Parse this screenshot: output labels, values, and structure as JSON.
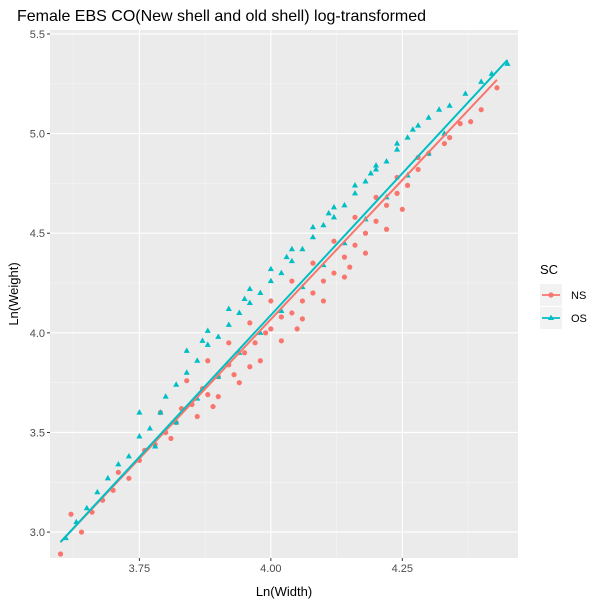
{
  "chart_data": {
    "type": "scatter",
    "title": "Female EBS CO(New shell and old shell) log-transformed",
    "xlabel": "Ln(Width)",
    "ylabel": "Ln(Weight)",
    "xlim": [
      3.58,
      4.47
    ],
    "ylim": [
      2.87,
      5.52
    ],
    "x_ticks": [
      3.75,
      4.0,
      4.25
    ],
    "x_tick_labels": [
      "3.75",
      "4.00",
      "4.25"
    ],
    "y_ticks": [
      3.0,
      3.5,
      4.0,
      4.5,
      5.0,
      5.5
    ],
    "y_tick_labels": [
      "3.0",
      "3.5",
      "4.0",
      "4.5",
      "5.0",
      "5.5"
    ],
    "grid": true,
    "legend": {
      "title": "SC",
      "position": "right"
    },
    "series": [
      {
        "name": "NS",
        "color": "#F8766D",
        "marker": "circle",
        "fit_line": {
          "x": [
            3.6,
            4.43
          ],
          "y": [
            2.95,
            5.27
          ]
        },
        "points": [
          [
            3.6,
            2.89
          ],
          [
            3.62,
            3.09
          ],
          [
            3.64,
            3.0
          ],
          [
            3.66,
            3.1
          ],
          [
            3.68,
            3.16
          ],
          [
            3.7,
            3.21
          ],
          [
            3.71,
            3.3
          ],
          [
            3.73,
            3.27
          ],
          [
            3.75,
            3.36
          ],
          [
            3.76,
            3.41
          ],
          [
            3.78,
            3.44
          ],
          [
            3.8,
            3.5
          ],
          [
            3.82,
            3.55
          ],
          [
            3.83,
            3.62
          ],
          [
            3.85,
            3.64
          ],
          [
            3.87,
            3.72
          ],
          [
            3.88,
            3.69
          ],
          [
            3.9,
            3.78
          ],
          [
            3.92,
            3.84
          ],
          [
            3.93,
            3.79
          ],
          [
            3.95,
            3.9
          ],
          [
            3.97,
            3.95
          ],
          [
            3.99,
            4.0
          ],
          [
            4.0,
            4.02
          ],
          [
            4.02,
            4.08
          ],
          [
            4.04,
            4.1
          ],
          [
            4.06,
            4.16
          ],
          [
            4.08,
            4.2
          ],
          [
            4.1,
            4.26
          ],
          [
            4.12,
            4.3
          ],
          [
            4.14,
            4.38
          ],
          [
            4.16,
            4.44
          ],
          [
            4.18,
            4.5
          ],
          [
            4.2,
            4.56
          ],
          [
            4.22,
            4.64
          ],
          [
            4.24,
            4.7
          ],
          [
            4.26,
            4.74
          ],
          [
            4.28,
            4.82
          ],
          [
            4.3,
            4.9
          ],
          [
            4.33,
            4.95
          ],
          [
            4.36,
            5.05
          ],
          [
            4.38,
            5.06
          ],
          [
            4.4,
            5.12
          ],
          [
            4.43,
            5.23
          ],
          [
            3.86,
            3.58
          ],
          [
            3.9,
            3.68
          ],
          [
            3.94,
            3.75
          ],
          [
            3.98,
            3.86
          ],
          [
            4.02,
            3.96
          ],
          [
            4.06,
            4.07
          ],
          [
            4.1,
            4.16
          ],
          [
            4.14,
            4.28
          ],
          [
            4.18,
            4.4
          ],
          [
            4.22,
            4.52
          ],
          [
            3.84,
            3.76
          ],
          [
            3.88,
            3.86
          ],
          [
            3.92,
            3.95
          ],
          [
            3.96,
            4.05
          ],
          [
            4.0,
            4.16
          ],
          [
            4.04,
            4.26
          ],
          [
            4.08,
            4.35
          ],
          [
            4.12,
            4.46
          ],
          [
            4.16,
            4.58
          ],
          [
            4.2,
            4.68
          ],
          [
            4.24,
            4.78
          ],
          [
            4.28,
            4.88
          ],
          [
            3.79,
            3.6
          ],
          [
            3.81,
            3.47
          ],
          [
            3.89,
            3.63
          ],
          [
            3.96,
            3.83
          ],
          [
            4.05,
            4.02
          ],
          [
            4.15,
            4.33
          ],
          [
            4.25,
            4.62
          ],
          [
            4.34,
            4.98
          ]
        ]
      },
      {
        "name": "OS",
        "color": "#00BFC4",
        "marker": "triangle",
        "fit_line": {
          "x": [
            3.6,
            4.45
          ],
          "y": [
            2.95,
            5.37
          ]
        },
        "points": [
          [
            3.61,
            2.97
          ],
          [
            3.63,
            3.05
          ],
          [
            3.65,
            3.12
          ],
          [
            3.67,
            3.2
          ],
          [
            3.69,
            3.27
          ],
          [
            3.71,
            3.34
          ],
          [
            3.73,
            3.38
          ],
          [
            3.75,
            3.48
          ],
          [
            3.77,
            3.52
          ],
          [
            3.79,
            3.6
          ],
          [
            3.8,
            3.68
          ],
          [
            3.82,
            3.74
          ],
          [
            3.84,
            3.8
          ],
          [
            3.86,
            3.86
          ],
          [
            3.88,
            3.94
          ],
          [
            3.9,
            3.98
          ],
          [
            3.92,
            4.04
          ],
          [
            3.94,
            4.1
          ],
          [
            3.96,
            4.15
          ],
          [
            3.98,
            4.2
          ],
          [
            4.0,
            4.26
          ],
          [
            4.02,
            4.3
          ],
          [
            4.04,
            4.36
          ],
          [
            4.06,
            4.42
          ],
          [
            4.08,
            4.48
          ],
          [
            4.1,
            4.54
          ],
          [
            4.12,
            4.58
          ],
          [
            4.14,
            4.64
          ],
          [
            4.16,
            4.7
          ],
          [
            4.18,
            4.76
          ],
          [
            4.2,
            4.82
          ],
          [
            4.22,
            4.86
          ],
          [
            4.24,
            4.92
          ],
          [
            4.26,
            4.98
          ],
          [
            4.28,
            5.04
          ],
          [
            4.3,
            5.08
          ],
          [
            4.32,
            5.12
          ],
          [
            4.34,
            5.14
          ],
          [
            4.37,
            5.2
          ],
          [
            4.4,
            5.26
          ],
          [
            4.42,
            5.3
          ],
          [
            4.45,
            5.35
          ],
          [
            3.78,
            3.43
          ],
          [
            3.82,
            3.55
          ],
          [
            3.86,
            3.67
          ],
          [
            3.9,
            3.78
          ],
          [
            3.94,
            3.9
          ],
          [
            3.98,
            4.0
          ],
          [
            4.02,
            4.11
          ],
          [
            4.06,
            4.23
          ],
          [
            4.1,
            4.34
          ],
          [
            4.14,
            4.45
          ],
          [
            4.18,
            4.57
          ],
          [
            4.22,
            4.68
          ],
          [
            4.26,
            4.79
          ],
          [
            4.3,
            4.9
          ],
          [
            3.84,
            3.91
          ],
          [
            3.88,
            4.01
          ],
          [
            3.92,
            4.12
          ],
          [
            3.96,
            4.22
          ],
          [
            4.0,
            4.32
          ],
          [
            4.04,
            4.42
          ],
          [
            4.08,
            4.53
          ],
          [
            4.12,
            4.63
          ],
          [
            4.16,
            4.74
          ],
          [
            4.2,
            4.84
          ],
          [
            4.24,
            4.95
          ],
          [
            3.75,
            3.6
          ],
          [
            3.87,
            3.96
          ],
          [
            3.95,
            4.17
          ],
          [
            4.03,
            4.38
          ],
          [
            4.11,
            4.6
          ],
          [
            4.19,
            4.8
          ],
          [
            4.27,
            5.02
          ],
          [
            4.33,
            5.0
          ]
        ]
      }
    ]
  }
}
